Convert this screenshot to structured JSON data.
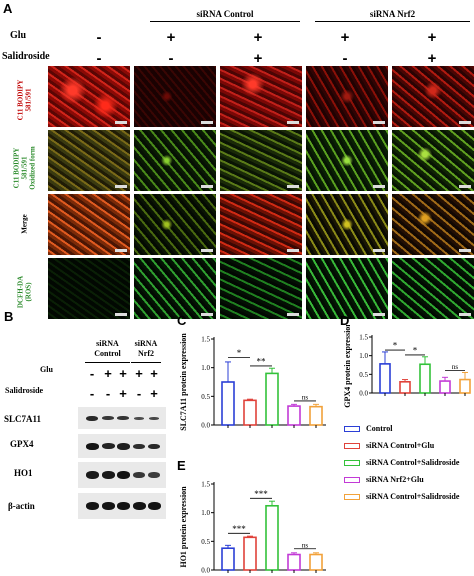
{
  "panel_a": {
    "letter": "A",
    "header_groups": [
      "siRNA Control",
      "siRNA Nrf2"
    ],
    "treatments": [
      {
        "label": "Glu",
        "marks": [
          "-",
          "+",
          "+",
          "+",
          "+"
        ]
      },
      {
        "label": "Salidroside",
        "marks": [
          "-",
          "-",
          "+",
          "-",
          "+"
        ]
      }
    ],
    "rows": [
      {
        "label_lines": [
          "C11 BODIPY",
          "581/591"
        ],
        "color": "#c00000"
      },
      {
        "label_lines": [
          "C11 BODIPY",
          "581/591",
          "Oxidized form"
        ],
        "color": "#2a8a2a"
      },
      {
        "label_lines": [
          "Merge"
        ],
        "color": "#000000"
      },
      {
        "label_lines": [
          "DCFH-DA",
          "(ROS)"
        ],
        "color": "#2a8a2a"
      }
    ]
  },
  "panel_b": {
    "letter": "B",
    "groups": [
      "siRNA\nControl",
      "siRNA\nNrf2"
    ],
    "group_lines": [
      [
        "siRNA",
        "Control"
      ],
      [
        "siRNA",
        "Nrf2"
      ]
    ],
    "treatments": [
      {
        "label": "Glu",
        "marks": [
          "-",
          "+",
          "+",
          "+",
          "+"
        ]
      },
      {
        "label": "Salidroside",
        "marks": [
          "-",
          "-",
          "+",
          "-",
          "+"
        ]
      }
    ],
    "blots": [
      "SLC7A11",
      "GPX4",
      "HO1",
      "β-actin"
    ]
  },
  "legend": {
    "entries": [
      "Control",
      "siRNA Control+Glu",
      "siRNA Control+Salidroside",
      "siRNA Nrf2+Glu",
      "siRNA Control+Salidroside"
    ],
    "colors": [
      "#2b3fd6",
      "#e0423a",
      "#33c23a",
      "#c23ad6",
      "#f2a23a"
    ]
  },
  "chart_data": [
    {
      "panel": "C",
      "type": "bar",
      "ylabel": "SLC7A11 protein expression",
      "ylim": [
        0,
        1.5
      ],
      "yticks": [
        "0.0",
        "0.5",
        "1.0",
        "1.5"
      ],
      "values": [
        0.75,
        0.43,
        0.9,
        0.33,
        0.32
      ],
      "errors": [
        0.35,
        0.02,
        0.09,
        0.03,
        0.04
      ],
      "colors": [
        "#2b3fd6",
        "#e0423a",
        "#33c23a",
        "#c23ad6",
        "#f2a23a"
      ],
      "annotations": [
        {
          "bars": [
            0,
            1
          ],
          "text": "*",
          "y": 1.18
        },
        {
          "bars": [
            1,
            2
          ],
          "text": "**",
          "y": 1.03
        },
        {
          "bars": [
            3,
            4
          ],
          "text": "ns",
          "y": 0.42
        }
      ]
    },
    {
      "panel": "D",
      "type": "bar",
      "ylabel": "GPX4 protein expression",
      "ylim": [
        0,
        1.5
      ],
      "yticks": [
        "0.0",
        "0.5",
        "1.0",
        "1.5"
      ],
      "values": [
        0.78,
        0.3,
        0.77,
        0.32,
        0.36
      ],
      "errors": [
        0.32,
        0.06,
        0.2,
        0.1,
        0.19
      ],
      "colors": [
        "#2b3fd6",
        "#e0423a",
        "#33c23a",
        "#c23ad6",
        "#f2a23a"
      ],
      "annotations": [
        {
          "bars": [
            0,
            1
          ],
          "text": "*",
          "y": 1.15
        },
        {
          "bars": [
            1,
            2
          ],
          "text": "*",
          "y": 1.02
        },
        {
          "bars": [
            3,
            4
          ],
          "text": "ns",
          "y": 0.6
        }
      ]
    },
    {
      "panel": "E",
      "type": "bar",
      "ylabel": "HO1 protein expression",
      "ylim": [
        0,
        1.5
      ],
      "yticks": [
        "0.0",
        "0.5",
        "1.0",
        "1.5"
      ],
      "values": [
        0.38,
        0.57,
        1.12,
        0.27,
        0.27
      ],
      "errors": [
        0.05,
        0.02,
        0.08,
        0.03,
        0.03
      ],
      "colors": [
        "#2b3fd6",
        "#e0423a",
        "#33c23a",
        "#c23ad6",
        "#f2a23a"
      ],
      "annotations": [
        {
          "bars": [
            0,
            1
          ],
          "text": "***",
          "y": 0.64
        },
        {
          "bars": [
            1,
            2
          ],
          "text": "***",
          "y": 1.25
        },
        {
          "bars": [
            3,
            4
          ],
          "text": "ns",
          "y": 0.37
        }
      ]
    }
  ]
}
